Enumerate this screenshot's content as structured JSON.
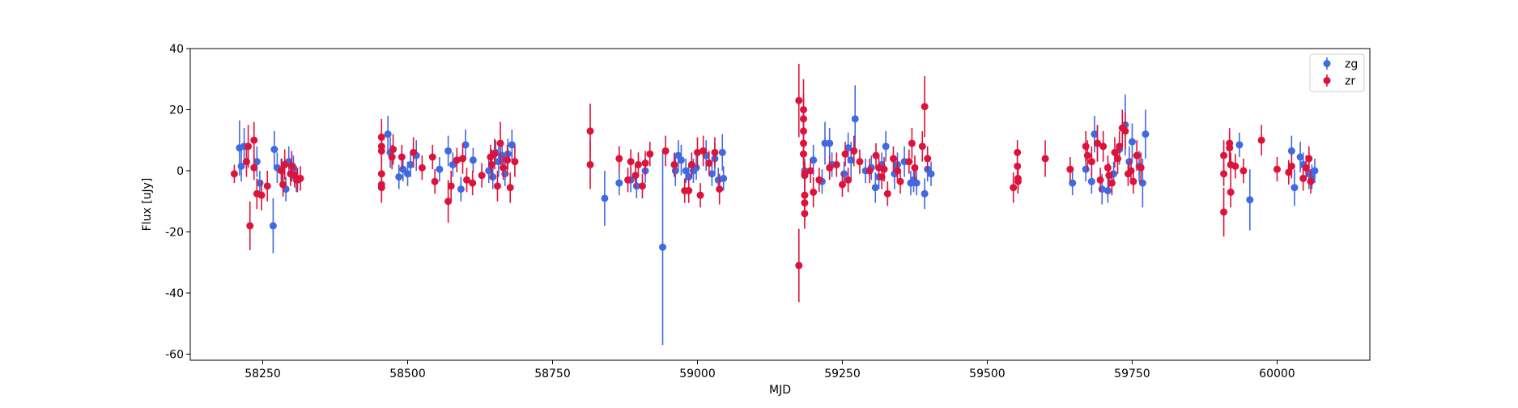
{
  "chart_data": {
    "type": "scatter",
    "xlabel": "MJD",
    "ylabel": "Flux [uJy]",
    "xlim": [
      58125,
      60160
    ],
    "ylim": [
      -62,
      40
    ],
    "xticks": [
      58250,
      58500,
      58750,
      59000,
      59250,
      59500,
      59750,
      60000
    ],
    "yticks": [
      -60,
      -40,
      -20,
      0,
      20,
      40
    ],
    "grid": false,
    "legend_position": "top-right",
    "series": [
      {
        "name": "zg",
        "color": "#4169e1",
        "points": [
          [
            58210,
            7.5,
            9
          ],
          [
            58213,
            1.5,
            5
          ],
          [
            58218,
            8,
            6
          ],
          [
            58240,
            3,
            5
          ],
          [
            58245,
            -4,
            4
          ],
          [
            58268,
            -18,
            9
          ],
          [
            58270,
            7,
            6
          ],
          [
            58275,
            1,
            5
          ],
          [
            58283,
            0,
            4
          ],
          [
            58290,
            -6,
            4
          ],
          [
            58295,
            3,
            5
          ],
          [
            58303,
            1,
            4
          ],
          [
            58308,
            -3,
            4
          ],
          [
            58466,
            12,
            6
          ],
          [
            58470,
            6,
            5
          ],
          [
            58485,
            -2,
            4
          ],
          [
            58492,
            0.5,
            4
          ],
          [
            58500,
            -1,
            4
          ],
          [
            58505,
            2,
            4
          ],
          [
            58515,
            5,
            5
          ],
          [
            58555,
            0.5,
            4
          ],
          [
            58570,
            6.5,
            5
          ],
          [
            58578,
            2,
            4
          ],
          [
            58592,
            -6,
            4
          ],
          [
            58600,
            8.5,
            5
          ],
          [
            58613,
            3.5,
            4
          ],
          [
            58640,
            0,
            4
          ],
          [
            58647,
            -2,
            4
          ],
          [
            58652,
            6,
            4
          ],
          [
            58657,
            3,
            5
          ],
          [
            58663,
            5,
            5
          ],
          [
            58668,
            -1,
            4
          ],
          [
            58673,
            5.5,
            5
          ],
          [
            58680,
            8.5,
            5
          ],
          [
            58840,
            -9,
            9
          ],
          [
            58865,
            -4,
            4
          ],
          [
            58885,
            -3,
            4
          ],
          [
            58895,
            -5,
            4
          ],
          [
            58910,
            0,
            4
          ],
          [
            58940,
            -25,
            32
          ],
          [
            58962,
            0,
            5
          ],
          [
            58967,
            5,
            5
          ],
          [
            58972,
            3.5,
            5
          ],
          [
            58980,
            0,
            4
          ],
          [
            58985,
            -2,
            4
          ],
          [
            58993,
            0,
            4
          ],
          [
            58998,
            1,
            4
          ],
          [
            59015,
            5,
            5
          ],
          [
            59025,
            -1,
            4
          ],
          [
            59030,
            4,
            5
          ],
          [
            59036,
            -3,
            4
          ],
          [
            59043,
            6,
            6
          ],
          [
            59045,
            -2.5,
            4
          ],
          [
            59185,
            0,
            4
          ],
          [
            59200,
            3.5,
            5
          ],
          [
            59215,
            -3.5,
            4
          ],
          [
            59220,
            9,
            7
          ],
          [
            59228,
            9,
            5
          ],
          [
            59232,
            2,
            4
          ],
          [
            59253,
            -1,
            4
          ],
          [
            59260,
            7.5,
            5
          ],
          [
            59265,
            3.5,
            6
          ],
          [
            59272,
            17,
            11
          ],
          [
            59290,
            0,
            4
          ],
          [
            59300,
            1,
            4
          ],
          [
            59307,
            -5.5,
            5
          ],
          [
            59313,
            -2,
            4
          ],
          [
            59318,
            2,
            4
          ],
          [
            59325,
            8,
            5
          ],
          [
            59340,
            -1,
            5
          ],
          [
            59345,
            2,
            4
          ],
          [
            59357,
            3,
            5
          ],
          [
            59368,
            -4,
            4
          ],
          [
            59373,
            -3,
            4
          ],
          [
            59378,
            -4,
            4
          ],
          [
            59392,
            -7.5,
            5
          ],
          [
            59397,
            0.5,
            4
          ],
          [
            59403,
            -1,
            4
          ],
          [
            59647,
            -4,
            4
          ],
          [
            59670,
            0.5,
            4
          ],
          [
            59680,
            -3.5,
            4
          ],
          [
            59685,
            12,
            6
          ],
          [
            59690,
            9,
            6
          ],
          [
            59698,
            -6,
            5
          ],
          [
            59708,
            -6.5,
            4
          ],
          [
            59718,
            -1,
            4
          ],
          [
            59728,
            7,
            5
          ],
          [
            59738,
            15,
            10
          ],
          [
            59745,
            3,
            5
          ],
          [
            59750,
            9.5,
            6
          ],
          [
            59762,
            1.5,
            5
          ],
          [
            59768,
            -4,
            8
          ],
          [
            59773,
            12,
            8
          ],
          [
            59935,
            8.5,
            4
          ],
          [
            59953,
            -9.5,
            10
          ],
          [
            60025,
            6.5,
            5
          ],
          [
            60030,
            -5.5,
            6
          ],
          [
            60040,
            4.5,
            5
          ],
          [
            60045,
            2,
            4
          ],
          [
            60055,
            -1,
            5
          ],
          [
            60060,
            -2,
            4
          ],
          [
            60065,
            0,
            4
          ]
        ]
      },
      {
        "name": "zr",
        "color": "#dc143c",
        "points": [
          [
            58201,
            -1,
            3
          ],
          [
            58222,
            3,
            5
          ],
          [
            58225,
            8,
            7
          ],
          [
            58228,
            -18,
            8
          ],
          [
            58235,
            10,
            6
          ],
          [
            58235,
            1,
            4
          ],
          [
            58240,
            -7.5,
            5
          ],
          [
            58248,
            -8,
            5
          ],
          [
            58258,
            -5,
            5
          ],
          [
            58282,
            0,
            4
          ],
          [
            58285,
            -4.5,
            4
          ],
          [
            58288,
            2,
            5
          ],
          [
            58298,
            -1,
            4
          ],
          [
            58300,
            1.5,
            5
          ],
          [
            58305,
            -1.5,
            4
          ],
          [
            58310,
            -3,
            4
          ],
          [
            58315,
            -2.5,
            4
          ],
          [
            58455,
            11,
            6
          ],
          [
            58455,
            8,
            5
          ],
          [
            58455,
            6.5,
            5
          ],
          [
            58455,
            -1,
            5
          ],
          [
            58455,
            -4.5,
            5
          ],
          [
            58455,
            -5.5,
            5
          ],
          [
            58473,
            4.5,
            4
          ],
          [
            58475,
            7,
            5
          ],
          [
            58490,
            4.5,
            4
          ],
          [
            58510,
            6,
            5
          ],
          [
            58525,
            1,
            4
          ],
          [
            58543,
            4.5,
            4
          ],
          [
            58547,
            -3.5,
            4
          ],
          [
            58570,
            -10,
            7
          ],
          [
            58575,
            -5,
            5
          ],
          [
            58585,
            3.5,
            4
          ],
          [
            58595,
            4,
            5
          ],
          [
            58602,
            -3,
            4
          ],
          [
            58612,
            -4,
            4
          ],
          [
            58628,
            -1.5,
            4
          ],
          [
            58643,
            4.5,
            4
          ],
          [
            58645,
            2,
            5
          ],
          [
            58650,
            5.5,
            5
          ],
          [
            58655,
            -5,
            5
          ],
          [
            58660,
            9,
            7
          ],
          [
            58665,
            1,
            4
          ],
          [
            58672,
            3.5,
            5
          ],
          [
            58677,
            -5.5,
            5
          ],
          [
            58685,
            3,
            5
          ],
          [
            58815,
            13,
            9
          ],
          [
            58815,
            2,
            8
          ],
          [
            58865,
            4,
            4
          ],
          [
            58880,
            -3,
            4
          ],
          [
            58885,
            3,
            4
          ],
          [
            58893,
            -1.5,
            4
          ],
          [
            58898,
            2,
            4
          ],
          [
            58905,
            -5,
            4
          ],
          [
            58910,
            2.5,
            4
          ],
          [
            58918,
            5.5,
            4
          ],
          [
            58945,
            6.5,
            5
          ],
          [
            58960,
            2,
            4
          ],
          [
            58978,
            -6.5,
            4
          ],
          [
            58985,
            -6.5,
            4
          ],
          [
            58990,
            2,
            4
          ],
          [
            59000,
            6,
            5
          ],
          [
            59005,
            -8,
            4
          ],
          [
            59010,
            6.5,
            5
          ],
          [
            59020,
            2.5,
            4
          ],
          [
            59030,
            6,
            5
          ],
          [
            59038,
            -6,
            5
          ],
          [
            59175,
            23,
            12
          ],
          [
            59175,
            -31,
            12
          ],
          [
            59183,
            20,
            10
          ],
          [
            59183,
            17,
            8
          ],
          [
            59183,
            13,
            7
          ],
          [
            59183,
            9,
            6
          ],
          [
            59183,
            5.5,
            5
          ],
          [
            59185,
            -1,
            4
          ],
          [
            59185,
            -1.5,
            4
          ],
          [
            59185,
            -8,
            5
          ],
          [
            59185,
            -10.5,
            6
          ],
          [
            59185,
            -14,
            5
          ],
          [
            59195,
            0,
            4
          ],
          [
            59200,
            -7,
            5
          ],
          [
            59210,
            -3,
            4
          ],
          [
            59228,
            1,
            4
          ],
          [
            59240,
            2,
            4
          ],
          [
            59250,
            -4.5,
            4
          ],
          [
            59255,
            5.5,
            4
          ],
          [
            59260,
            -3,
            4
          ],
          [
            59270,
            6.5,
            5
          ],
          [
            59280,
            3,
            4
          ],
          [
            59297,
            0,
            4
          ],
          [
            59308,
            5,
            4
          ],
          [
            59313,
            1,
            4
          ],
          [
            59318,
            -2,
            4
          ],
          [
            59322,
            0.5,
            4
          ],
          [
            59328,
            -7.5,
            4
          ],
          [
            59338,
            4,
            4
          ],
          [
            59345,
            0,
            4
          ],
          [
            59350,
            -3.5,
            4
          ],
          [
            59365,
            3,
            4
          ],
          [
            59370,
            9,
            5
          ],
          [
            59375,
            1,
            4
          ],
          [
            59388,
            8,
            5
          ],
          [
            59392,
            21,
            10
          ],
          [
            59397,
            4,
            4
          ],
          [
            59545,
            -5.5,
            5
          ],
          [
            59552,
            6,
            4
          ],
          [
            59552,
            1.5,
            4
          ],
          [
            59553,
            -2.5,
            4
          ],
          [
            59553,
            -3.5,
            4
          ],
          [
            59600,
            4,
            6
          ],
          [
            59643,
            0.5,
            4
          ],
          [
            59670,
            8,
            5
          ],
          [
            59673,
            5,
            5
          ],
          [
            59680,
            3,
            5
          ],
          [
            59690,
            9,
            6
          ],
          [
            59695,
            -3,
            4
          ],
          [
            59700,
            8,
            5
          ],
          [
            59708,
            1,
            4
          ],
          [
            59710,
            -1.5,
            4
          ],
          [
            59715,
            -4,
            4
          ],
          [
            59720,
            6,
            5
          ],
          [
            59725,
            4,
            5
          ],
          [
            59728,
            8,
            5
          ],
          [
            59733,
            14,
            6
          ],
          [
            59738,
            13,
            6
          ],
          [
            59743,
            -1,
            4
          ],
          [
            59748,
            0,
            4
          ],
          [
            59752,
            -3.5,
            4
          ],
          [
            59758,
            5,
            5
          ],
          [
            59765,
            1,
            5
          ],
          [
            59908,
            5,
            5
          ],
          [
            59908,
            -1,
            4
          ],
          [
            59908,
            -13.5,
            8
          ],
          [
            59918,
            9,
            5
          ],
          [
            59918,
            7.5,
            5
          ],
          [
            59920,
            2,
            4
          ],
          [
            59920,
            -7,
            5
          ],
          [
            59928,
            1.5,
            4
          ],
          [
            59942,
            0,
            4
          ],
          [
            59973,
            10,
            5
          ],
          [
            60000,
            0.5,
            4
          ],
          [
            60020,
            -0.5,
            4
          ],
          [
            60025,
            1.5,
            4
          ],
          [
            60045,
            -2.5,
            4
          ],
          [
            60050,
            1,
            4
          ],
          [
            60055,
            4,
            4
          ],
          [
            60058,
            -3.5,
            4
          ]
        ]
      }
    ]
  }
}
